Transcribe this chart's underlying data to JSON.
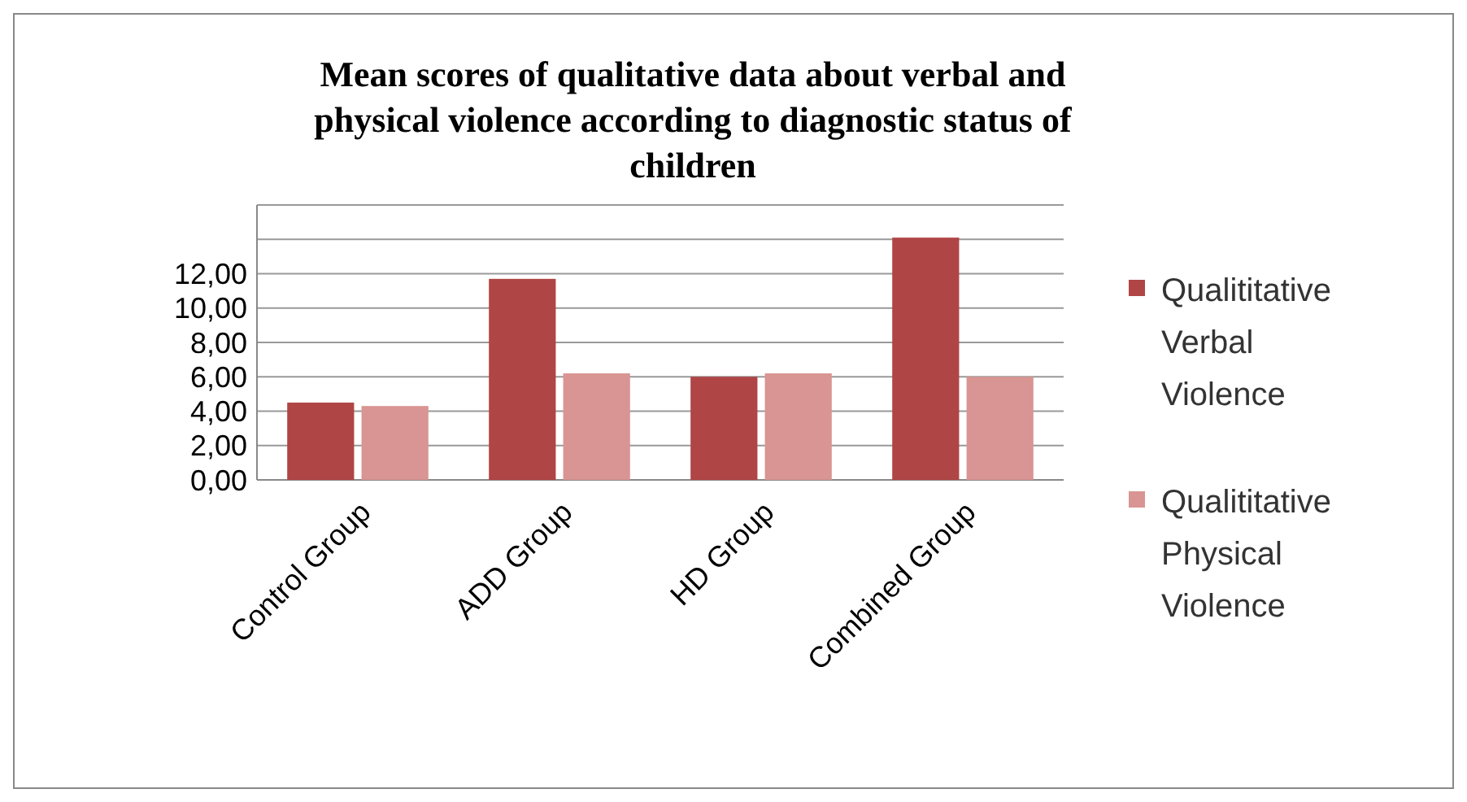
{
  "chart_data": {
    "type": "bar",
    "title": "Mean scores of qualitative data about verbal and physical violence according to diagnostic status of children",
    "categories": [
      "Control Group",
      "ADD Group",
      "HD Group",
      "Combined Group"
    ],
    "series": [
      {
        "name": "Qualititative Verbal Violence",
        "color": "#b04545",
        "values": [
          4.5,
          11.7,
          6.0,
          14.1
        ]
      },
      {
        "name": "Qualititative Physical Violence",
        "color": "#d99593",
        "values": [
          4.3,
          6.2,
          6.2,
          6.0
        ]
      }
    ],
    "ylim": [
      0,
      16
    ],
    "yticks": [
      {
        "value": 0,
        "label": "0,00"
      },
      {
        "value": 2,
        "label": "2,00"
      },
      {
        "value": 4,
        "label": "4,00"
      },
      {
        "value": 6,
        "label": "6,00"
      },
      {
        "value": 8,
        "label": "8,00"
      },
      {
        "value": 10,
        "label": "10,00"
      },
      {
        "value": 12,
        "label": "12,00"
      },
      {
        "value": 14,
        "label": null
      },
      {
        "value": 16,
        "label": null
      }
    ],
    "grid": "y",
    "legend": "right"
  }
}
